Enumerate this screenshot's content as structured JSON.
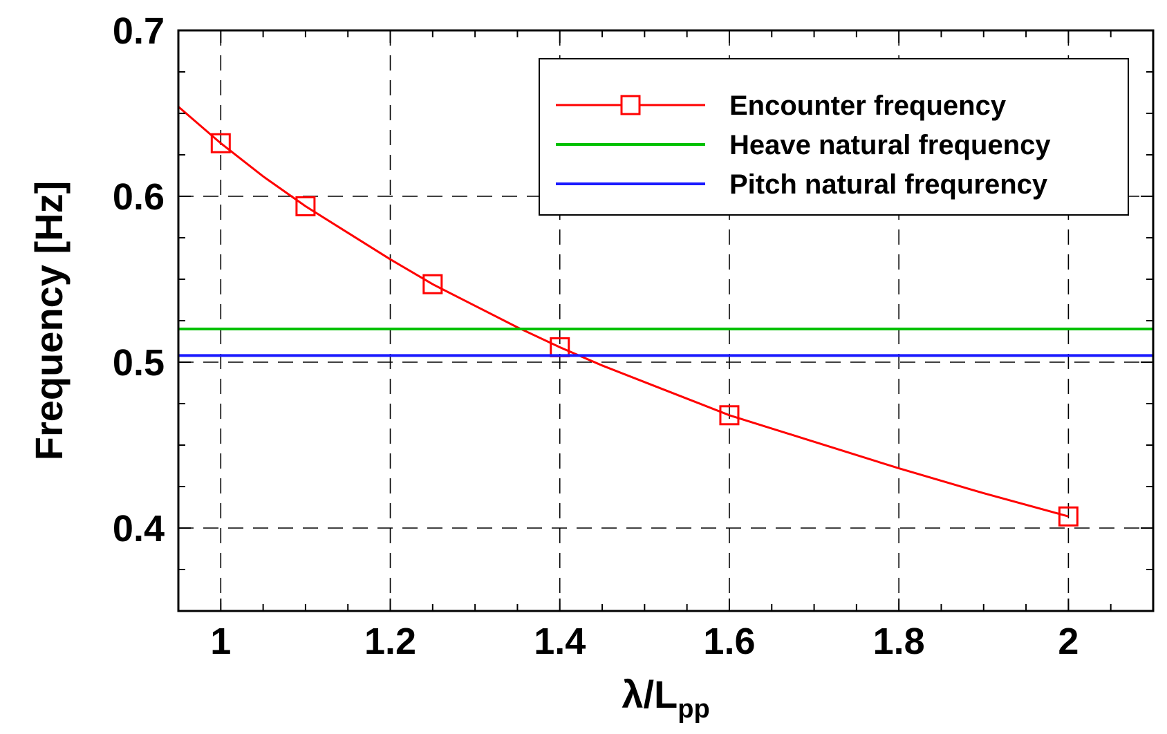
{
  "chart_data": {
    "type": "line",
    "xlabel": {
      "main": "λ/L",
      "sub": "pp"
    },
    "ylabel": "Frequency [Hz]",
    "xlim": [
      0.95,
      2.1
    ],
    "ylim": [
      0.35,
      0.7
    ],
    "x_ticks": [
      1,
      1.2,
      1.4,
      1.6,
      1.8,
      2
    ],
    "x_tick_labels": [
      "1",
      "1.2",
      "1.4",
      "1.6",
      "1.8",
      "2"
    ],
    "x_minor_step": 0.05,
    "y_ticks": [
      0.4,
      0.5,
      0.6,
      0.7
    ],
    "y_tick_labels": [
      "0.4",
      "0.5",
      "0.6",
      "0.7"
    ],
    "y_minor_step": 0.025,
    "grid": "dashed at major ticks",
    "legend_position": "top-right",
    "series": [
      {
        "name": "Encounter frequency",
        "color": "#ff0000",
        "marker": "square",
        "x": [
          1.0,
          1.1,
          1.25,
          1.4,
          1.6,
          2.0
        ],
        "y": [
          0.632,
          0.594,
          0.547,
          0.509,
          0.468,
          0.407
        ],
        "curve_x": [
          0.95,
          1.0,
          1.05,
          1.1,
          1.15,
          1.2,
          1.25,
          1.3,
          1.35,
          1.4,
          1.45,
          1.5,
          1.55,
          1.6,
          1.7,
          1.8,
          1.9,
          2.0
        ],
        "curve_y": [
          0.654,
          0.632,
          0.612,
          0.594,
          0.578,
          0.562,
          0.547,
          0.534,
          0.521,
          0.509,
          0.498,
          0.488,
          0.478,
          0.468,
          0.452,
          0.436,
          0.421,
          0.407
        ]
      },
      {
        "name": "Heave natural frequency",
        "color": "#00c000",
        "x": [
          0.95,
          2.1
        ],
        "y": [
          0.52,
          0.52
        ]
      },
      {
        "name": "Pitch natural frequrency",
        "color": "#1a1aff",
        "x": [
          0.95,
          2.1
        ],
        "y": [
          0.504,
          0.504
        ]
      }
    ]
  }
}
